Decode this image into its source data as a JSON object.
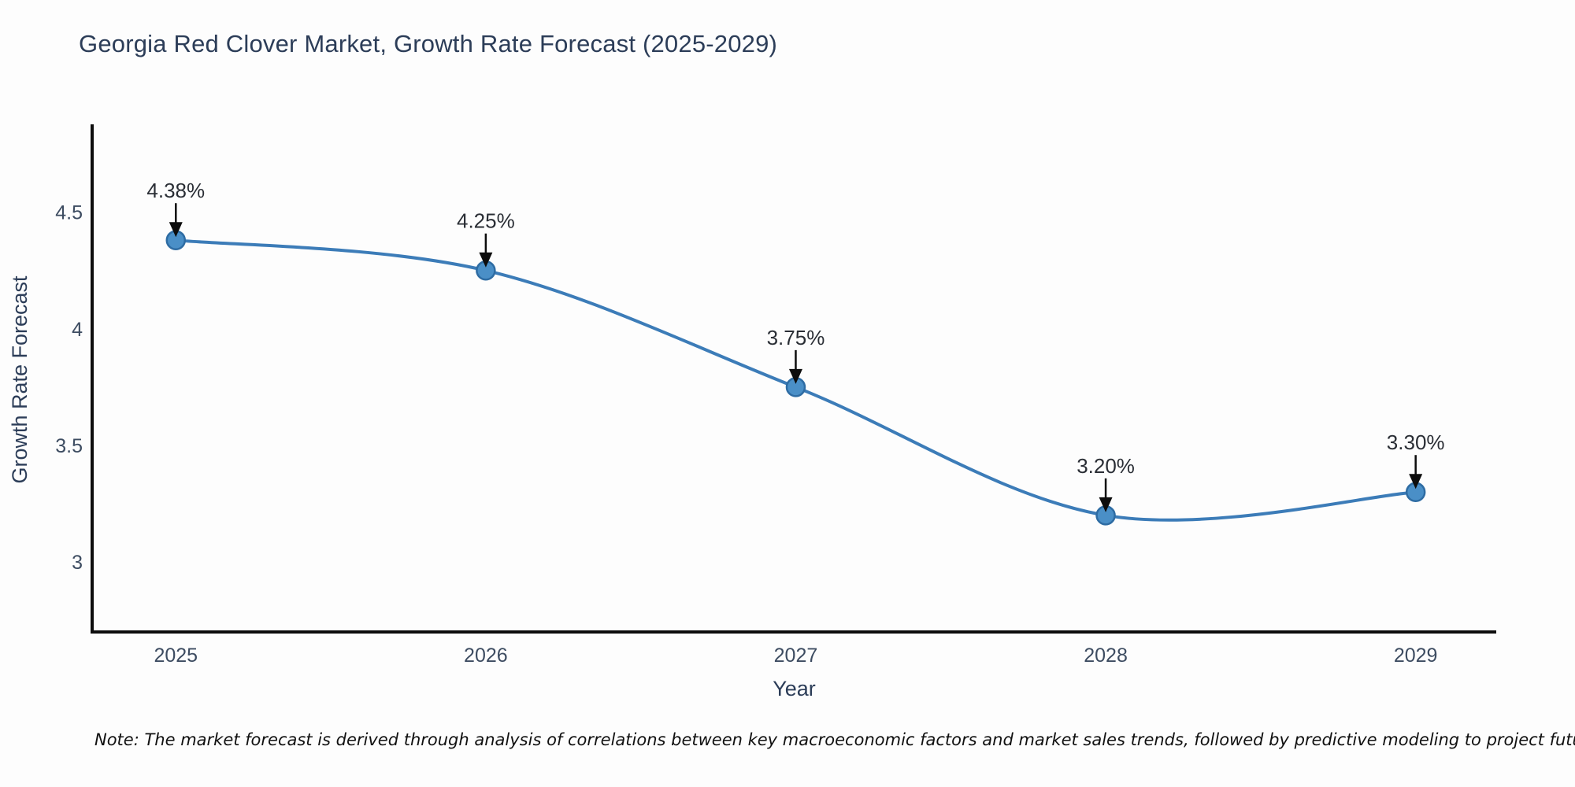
{
  "chart_data": {
    "type": "line",
    "title": "Georgia Red Clover Market, Growth Rate Forecast (2025-2029)",
    "xlabel": "Year",
    "ylabel": "Growth Rate Forecast",
    "x": [
      2025,
      2026,
      2027,
      2028,
      2029
    ],
    "values": [
      4.38,
      4.25,
      3.75,
      3.2,
      3.3
    ],
    "point_labels": [
      "4.38%",
      "4.25%",
      "3.75%",
      "3.20%",
      "3.30%"
    ],
    "x_tick_labels": [
      "2025",
      "2026",
      "2027",
      "2028",
      "2029"
    ],
    "y_ticks": [
      3,
      3.5,
      4,
      4.5
    ],
    "y_tick_labels": [
      "3",
      "3.5",
      "4",
      "4.5"
    ],
    "xlim": [
      2024.73,
      2029.26
    ],
    "ylim": [
      2.7,
      4.87
    ],
    "grid": false,
    "legend_position": "none",
    "line_shape": "spline",
    "annotation_style": "arrow-down-to-point",
    "note": "Note: The market forecast is derived through analysis of correlations between key macroeconomic factors and market sales trends, followed by predictive modeling to project future sales",
    "colors": {
      "background": "#fdfdfd",
      "title_text": "#2c3d58",
      "axis_line": "#0d0d0d",
      "tick_label": "#3d4c61",
      "series_line": "#3c7cb8",
      "marker_fill": "#4a8fc7",
      "marker_stroke": "#2e6ca3",
      "point_label": "#2a2e35",
      "arrow": "#0d0d0d",
      "note_text": "#111111"
    }
  }
}
